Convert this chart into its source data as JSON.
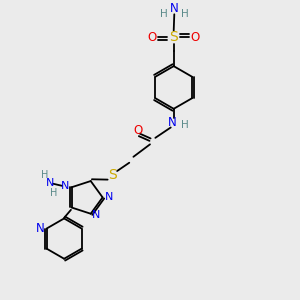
{
  "bg_color": "#ebebeb",
  "atom_colors": {
    "C": "#000000",
    "N": "#0000ee",
    "O": "#ee0000",
    "S": "#ccaa00",
    "H": "#5a8a8a"
  },
  "bond_color": "#000000",
  "figsize": [
    3.0,
    3.0
  ],
  "dpi": 100,
  "xlim": [
    0,
    10
  ],
  "ylim": [
    0,
    10
  ]
}
